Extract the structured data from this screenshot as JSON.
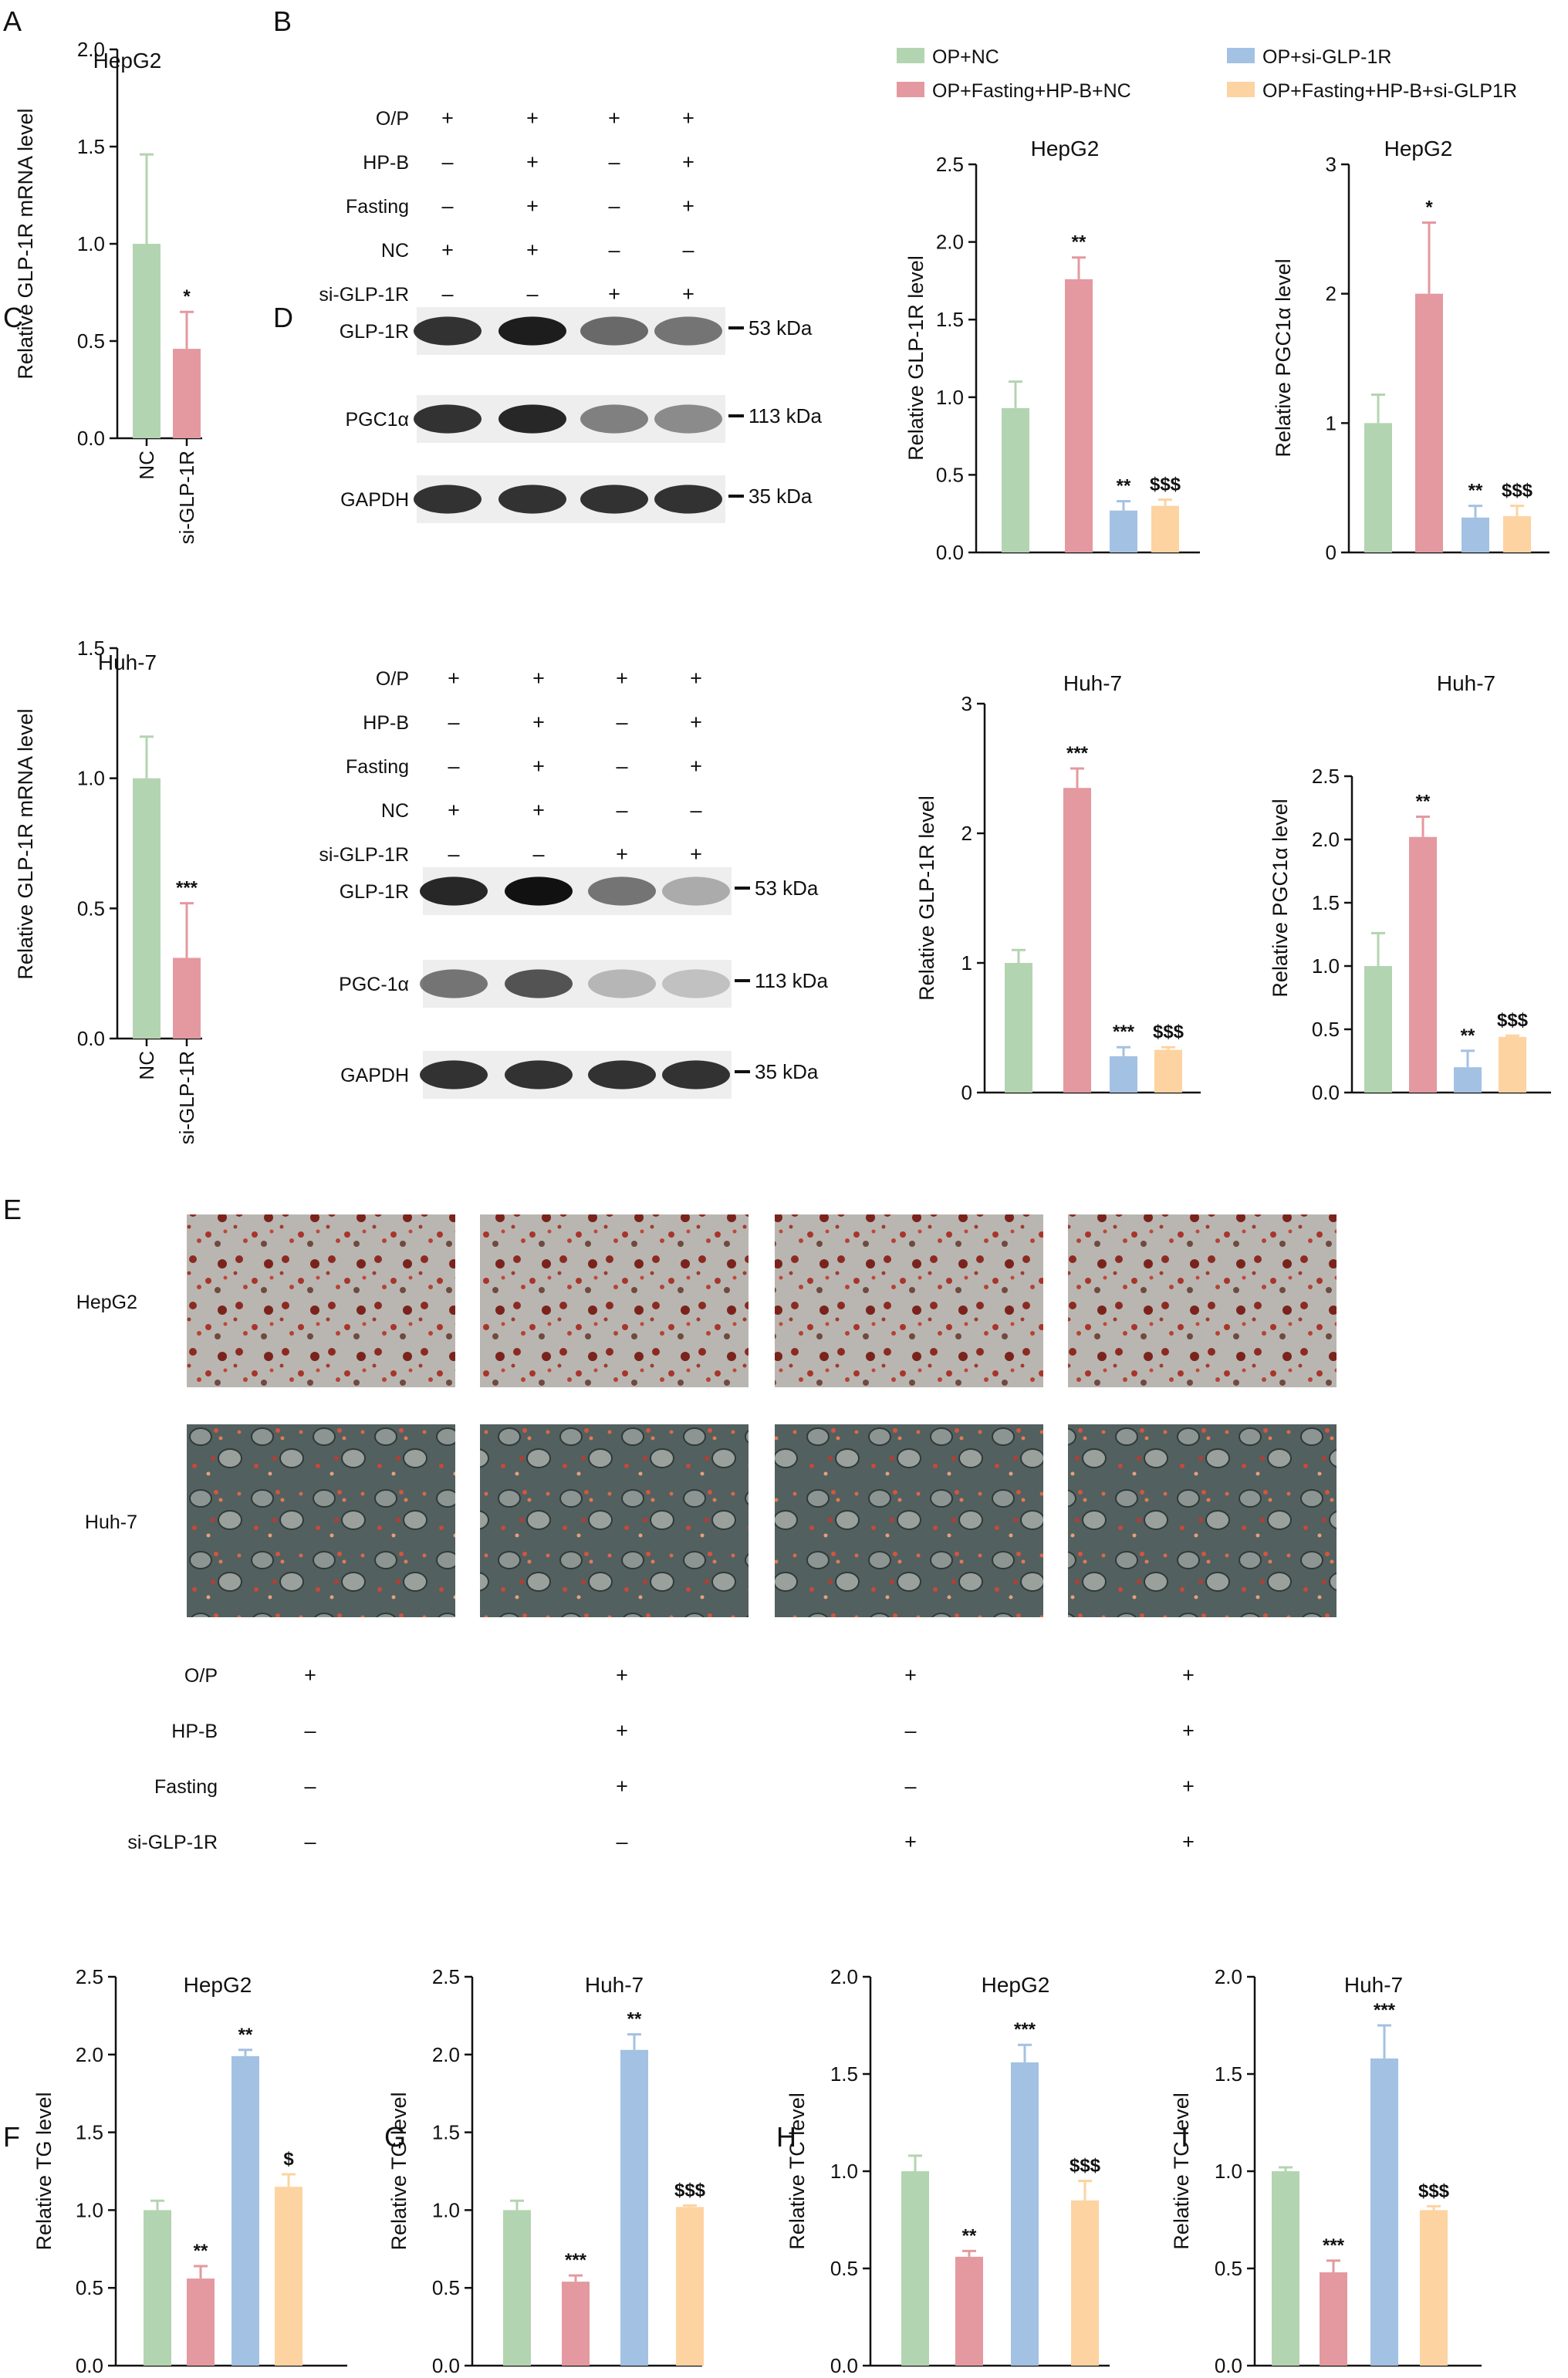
{
  "colors": {
    "green": "#b3d4b0",
    "red": "#e3999f",
    "blue": "#a3c1e3",
    "orange": "#fdd3a1"
  },
  "legend": [
    {
      "name": "OP+NC",
      "color": "green"
    },
    {
      "name": "OP+Fasting+HP-B+NC",
      "color": "red"
    },
    {
      "name": "OP+si-GLP-1R",
      "color": "blue"
    },
    {
      "name": "OP+Fasting+HP-B+si-GLP1R",
      "color": "orange"
    }
  ],
  "letters": {
    "A": "A",
    "B": "B",
    "C": "C",
    "D": "D",
    "E": "E",
    "F": "F",
    "G": "G",
    "H": "H",
    "I": "I"
  },
  "chart_data": [
    {
      "id": "A",
      "type": "bar",
      "title": "HepG2",
      "ylabel": "Relative GLP-1R mRNA level",
      "ylim": [
        0,
        2.0
      ],
      "ticks": [
        "0.0",
        "0.5",
        "1.0",
        "1.5",
        "2.0"
      ],
      "categories": [
        "NC",
        "si-GLP-1R"
      ],
      "values": [
        1.0,
        0.46
      ],
      "errors": [
        0.46,
        0.19
      ],
      "colors": [
        "green",
        "red"
      ],
      "stars": [
        "",
        "*"
      ]
    },
    {
      "id": "C",
      "type": "bar",
      "title": "Huh-7",
      "ylabel": "Relative GLP-1R mRNA level",
      "ylim": [
        0,
        1.5
      ],
      "ticks": [
        "0.0",
        "0.5",
        "1.0",
        "1.5"
      ],
      "categories": [
        "NC",
        "si-GLP-1R"
      ],
      "values": [
        1.0,
        0.31
      ],
      "errors": [
        0.16,
        0.21
      ],
      "colors": [
        "green",
        "red"
      ],
      "stars": [
        "",
        "***"
      ]
    },
    {
      "id": "B1",
      "type": "bar",
      "title": "HepG2",
      "ylabel": "Relative GLP-1R level",
      "ylim": [
        0,
        2.5
      ],
      "ticks": [
        "0.0",
        "0.5",
        "1.0",
        "1.5",
        "2.0",
        "2.5"
      ],
      "values": [
        0.93,
        1.76,
        0.27,
        0.3
      ],
      "errors": [
        0.17,
        0.14,
        0.06,
        0.04
      ],
      "stars": [
        "",
        "**",
        "**",
        "$$$"
      ]
    },
    {
      "id": "B2",
      "type": "bar",
      "title": "HepG2",
      "ylabel": "Relative PGC1α level",
      "ylim": [
        0,
        3
      ],
      "ticks": [
        "0",
        "1",
        "2",
        "3"
      ],
      "values": [
        1.0,
        2.0,
        0.27,
        0.28
      ],
      "errors": [
        0.22,
        0.55,
        0.09,
        0.08
      ],
      "stars": [
        "",
        "*",
        "**",
        "$$$"
      ]
    },
    {
      "id": "D1",
      "type": "bar",
      "title": "Huh-7",
      "ylabel": "Relative GLP-1R level",
      "ylim": [
        0,
        3
      ],
      "ticks": [
        "0",
        "1",
        "2",
        "3"
      ],
      "values": [
        1.0,
        2.35,
        0.28,
        0.33
      ],
      "errors": [
        0.1,
        0.15,
        0.07,
        0.02
      ],
      "stars": [
        "",
        "***",
        "***",
        "$$$"
      ]
    },
    {
      "id": "D2",
      "type": "bar",
      "title": "Huh-7",
      "ylabel": "Relative PGC1α level",
      "ylim": [
        0,
        2.5
      ],
      "ticks": [
        "0.0",
        "0.5",
        "1.0",
        "1.5",
        "2.0",
        "2.5"
      ],
      "values": [
        1.0,
        2.02,
        0.2,
        0.44
      ],
      "errors": [
        0.26,
        0.16,
        0.13,
        0.01
      ],
      "stars": [
        "",
        "**",
        "**",
        "$$$"
      ]
    },
    {
      "id": "F",
      "type": "bar",
      "title": "HepG2",
      "ylabel": "Relative TG level",
      "ylim": [
        0,
        2.5
      ],
      "ticks": [
        "0.0",
        "0.5",
        "1.0",
        "1.5",
        "2.0",
        "2.5"
      ],
      "values": [
        1.0,
        0.56,
        1.99,
        1.15
      ],
      "errors": [
        0.06,
        0.08,
        0.04,
        0.08
      ],
      "stars": [
        "",
        "**",
        "**",
        "$"
      ]
    },
    {
      "id": "G",
      "type": "bar",
      "title": "Huh-7",
      "ylabel": "Relative TG level",
      "ylim": [
        0,
        2.5
      ],
      "ticks": [
        "0.0",
        "0.5",
        "1.0",
        "1.5",
        "2.0",
        "2.5"
      ],
      "values": [
        1.0,
        0.54,
        2.03,
        1.02
      ],
      "errors": [
        0.06,
        0.04,
        0.1,
        0.01
      ],
      "stars": [
        "",
        "***",
        "**",
        "$$$"
      ]
    },
    {
      "id": "H",
      "type": "bar",
      "title": "HepG2",
      "ylabel": "Relative TC level",
      "ylim": [
        0,
        2.0
      ],
      "ticks": [
        "0.0",
        "0.5",
        "1.0",
        "1.5",
        "2.0"
      ],
      "values": [
        1.0,
        0.56,
        1.56,
        0.85
      ],
      "errors": [
        0.08,
        0.03,
        0.09,
        0.1
      ],
      "stars": [
        "",
        "**",
        "***",
        "$$$"
      ]
    },
    {
      "id": "I",
      "type": "bar",
      "title": "Huh-7",
      "ylabel": "Relative TC level",
      "ylim": [
        0,
        2.0
      ],
      "ticks": [
        "0.0",
        "0.5",
        "1.0",
        "1.5",
        "2.0"
      ],
      "values": [
        1.0,
        0.48,
        1.58,
        0.8
      ],
      "errors": [
        0.02,
        0.06,
        0.17,
        0.02
      ],
      "stars": [
        "",
        "***",
        "***",
        "$$$"
      ]
    }
  ],
  "blot_B": {
    "rows": [
      {
        "label": "O/P",
        "marks": [
          "+",
          "+",
          "+",
          "+"
        ]
      },
      {
        "label": "HP-B",
        "marks": [
          "–",
          "+",
          "–",
          "+"
        ]
      },
      {
        "label": "Fasting",
        "marks": [
          "–",
          "+",
          "–",
          "+"
        ]
      },
      {
        "label": "NC",
        "marks": [
          "+",
          "+",
          "–",
          "–"
        ]
      },
      {
        "label": "si-GLP-1R",
        "marks": [
          "–",
          "–",
          "+",
          "+"
        ]
      }
    ],
    "bands": [
      {
        "label": "GLP-1R",
        "kda": "53 kDa",
        "intensity": [
          0.85,
          0.95,
          0.6,
          0.55
        ]
      },
      {
        "label": "PGC1α",
        "kda": "113 kDa",
        "intensity": [
          0.85,
          0.9,
          0.5,
          0.45
        ]
      },
      {
        "label": "GAPDH",
        "kda": "35 kDa",
        "intensity": [
          0.85,
          0.85,
          0.85,
          0.85
        ]
      }
    ]
  },
  "blot_D": {
    "rows": [
      {
        "label": "O/P",
        "marks": [
          "+",
          "+",
          "+",
          "+"
        ]
      },
      {
        "label": "HP-B",
        "marks": [
          "–",
          "+",
          "–",
          "+"
        ]
      },
      {
        "label": "Fasting",
        "marks": [
          "–",
          "+",
          "–",
          "+"
        ]
      },
      {
        "label": "NC",
        "marks": [
          "+",
          "+",
          "–",
          "–"
        ]
      },
      {
        "label": "si-GLP-1R",
        "marks": [
          "–",
          "–",
          "+",
          "+"
        ]
      }
    ],
    "bands": [
      {
        "label": "GLP-1R",
        "kda": "53 kDa",
        "intensity": [
          0.9,
          1.0,
          0.55,
          0.3
        ]
      },
      {
        "label": "PGC-1α",
        "kda": "113 kDa",
        "intensity": [
          0.55,
          0.7,
          0.25,
          0.2
        ]
      },
      {
        "label": "GAPDH",
        "kda": "35 kDa",
        "intensity": [
          0.85,
          0.85,
          0.85,
          0.85
        ]
      }
    ]
  },
  "panel_E": {
    "row_labels": [
      "HepG2",
      "Huh-7"
    ],
    "rows": [
      {
        "label": "O/P",
        "marks": [
          "+",
          "+",
          "+",
          "+"
        ]
      },
      {
        "label": "HP-B",
        "marks": [
          "–",
          "+",
          "–",
          "+"
        ]
      },
      {
        "label": "Fasting",
        "marks": [
          "–",
          "+",
          "–",
          "+"
        ]
      },
      {
        "label": "si-GLP-1R",
        "marks": [
          "–",
          "–",
          "+",
          "+"
        ]
      }
    ]
  }
}
